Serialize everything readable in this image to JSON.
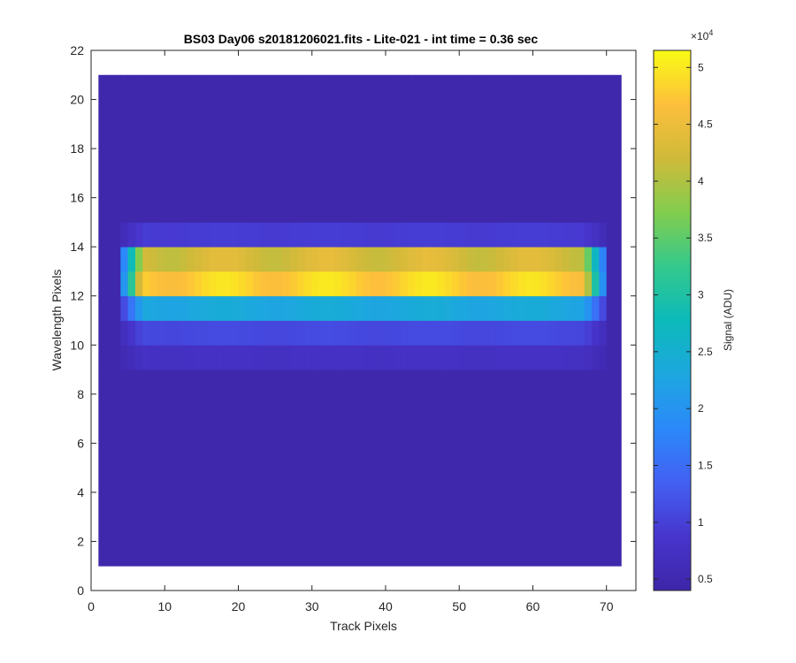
{
  "chart_data": {
    "type": "heatmap",
    "title": "BS03 Day06  s20181206021.fits - Lite-021 - int time = 0.36 sec",
    "xlabel": "Track Pixels",
    "ylabel": "Wavelength Pixels",
    "xlim": [
      0,
      74
    ],
    "ylim": [
      0,
      22
    ],
    "xticks": [
      0,
      10,
      20,
      30,
      40,
      50,
      60,
      70
    ],
    "yticks": [
      0,
      2,
      4,
      6,
      8,
      10,
      12,
      14,
      16,
      18,
      20,
      22
    ],
    "x_range": [
      1,
      72
    ],
    "y_range": [
      1,
      21
    ],
    "colorbar": {
      "label": "Signal (ADU)",
      "exponent_label": "×10",
      "exponent": "4",
      "min": 0.4,
      "max": 5.15,
      "ticks": [
        0.5,
        1,
        1.5,
        2,
        2.5,
        3,
        3.5,
        4,
        4.5,
        5
      ],
      "tick_labels": [
        "0.5",
        "1",
        "1.5",
        "2",
        "2.5",
        "3",
        "3.5",
        "4",
        "4.5",
        "5"
      ]
    },
    "background_value": 0.45,
    "row_profiles": [
      {
        "row": 9,
        "value": 0.75
      },
      {
        "row": 10,
        "value": 1.1
      },
      {
        "row": 11,
        "value": 2.35
      },
      {
        "row": 12,
        "value": 4.85
      },
      {
        "row": 13,
        "value": 4.3
      },
      {
        "row": 14,
        "value": 0.95
      }
    ],
    "band_x_extent": [
      4,
      70
    ],
    "colormap": "parula",
    "grid": false
  }
}
